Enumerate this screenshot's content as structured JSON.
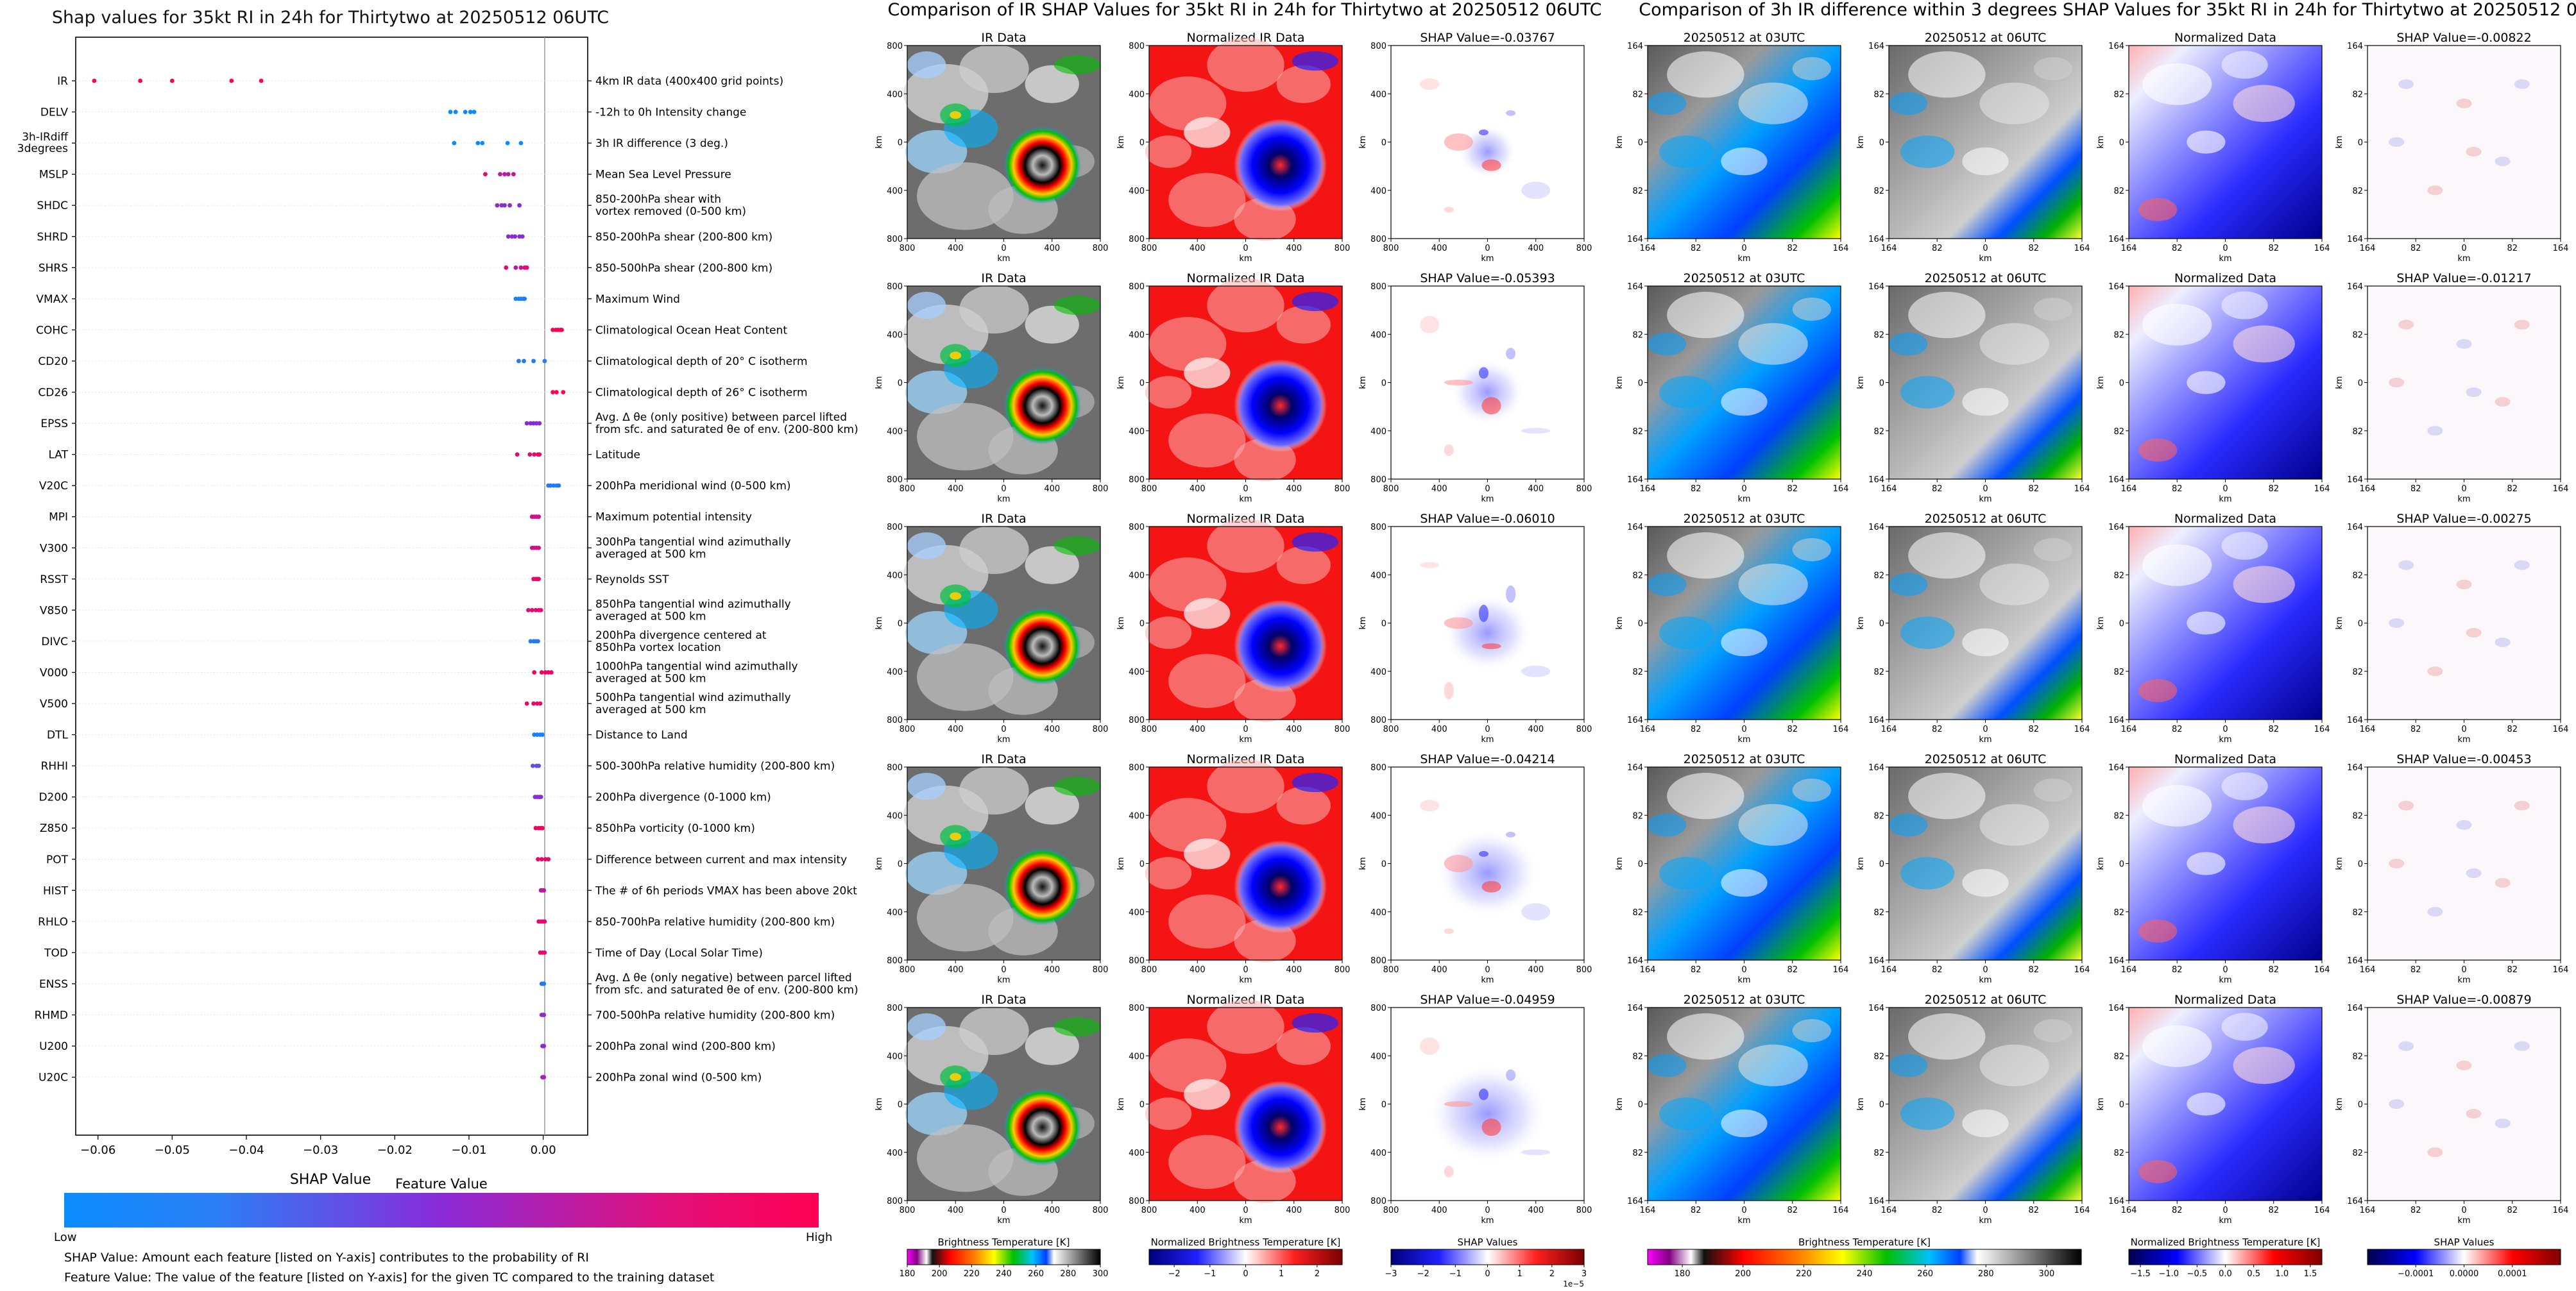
{
  "summary_plot": {
    "title": "Shap values for 35kt RI in 24h for Thirtytwo at 20250512 06UTC",
    "xlabel": "SHAP Value",
    "x_ticks": [
      "−0.06",
      "−0.05",
      "−0.04",
      "−0.03",
      "−0.02",
      "−0.01",
      "0.00"
    ],
    "colorbar_title": "Feature Value",
    "colorbar_low": "Low",
    "colorbar_high": "High",
    "footnote1": "SHAP Value: Amount each feature [listed on Y-axis] contributes to the probability of RI",
    "footnote2": "Feature Value: The value of the feature [listed on Y-axis] for the given TC compared to the training dataset",
    "low_color": "#1e88e5",
    "high_color": "#ff0052"
  },
  "ir_section": {
    "title": "Comparison of IR SHAP Values for 35kt RI in 24h for Thirtytwo at 20250512 06UTC",
    "col1_title": "IR Data",
    "col2_title": "Normalized IR Data",
    "shap_values": [
      "SHAP Value=-0.03767",
      "SHAP Value=-0.05393",
      "SHAP Value=-0.06010",
      "SHAP Value=-0.04214",
      "SHAP Value=-0.04959"
    ],
    "axis_unit": "km",
    "ticks": [
      "800",
      "400",
      "0",
      "400",
      "800"
    ],
    "x_ticks": [
      "800",
      "400",
      "0",
      "400",
      "800"
    ],
    "cbar1_label": "Brightness Temperature [K]",
    "cbar1_ticks": [
      "180",
      "200",
      "220",
      "240",
      "260",
      "280",
      "300"
    ],
    "cbar2_label": "Normalized Brightness Temperature [K]",
    "cbar2_ticks": [
      "−2",
      "−1",
      "0",
      "1",
      "2"
    ],
    "cbar3_label": "SHAP Values",
    "cbar3_ticks": [
      "−3",
      "−2",
      "−1",
      "0",
      "1",
      "2",
      "3"
    ],
    "cbar3_exp": "1e−5"
  },
  "diff_section": {
    "title": "Comparison of 3h IR difference within 3 degrees SHAP Values for 35kt RI in 24h for Thirtytwo at 20250512 06UTC",
    "col1_title": "20250512 at 03UTC",
    "col2_title": "20250512 at 06UTC",
    "col3_title": "Normalized Data",
    "shap_values": [
      "SHAP Value=-0.00822",
      "SHAP Value=-0.01217",
      "SHAP Value=-0.00275",
      "SHAP Value=-0.00453",
      "SHAP Value=-0.00879"
    ],
    "axis_unit": "km",
    "ticks": [
      "164",
      "82",
      "0",
      "82",
      "164"
    ],
    "x_ticks": [
      "164",
      "82",
      "0",
      "82",
      "164"
    ],
    "cbar1_label": "Brightness Temperature [K]",
    "cbar1_ticks": [
      "180",
      "200",
      "220",
      "240",
      "260",
      "280",
      "300"
    ],
    "cbar2_label": "Normalized Brightness Temperature [K]",
    "cbar2_ticks": [
      "−1.5",
      "−1.0",
      "−0.5",
      "0.0",
      "0.5",
      "1.0",
      "1.5"
    ],
    "cbar3_label": "SHAP Values",
    "cbar3_ticks": [
      "−0.0001",
      "0.0000",
      "0.0001"
    ]
  },
  "chart_data": [
    {
      "type": "scatter",
      "title": "Shap values for 35kt RI in 24h for Thirtytwo at 20250512 06UTC",
      "xlabel": "SHAP Value",
      "xlim": [
        -0.063,
        0.006
      ],
      "grid": false,
      "features": [
        {
          "name": "IR",
          "desc": "4km IR data (400x400 grid points)",
          "points": [
            [
              -0.0605,
              1
            ],
            [
              -0.0543,
              1
            ],
            [
              -0.05,
              1
            ],
            [
              -0.042,
              1
            ],
            [
              -0.038,
              1
            ]
          ]
        },
        {
          "name": "DELV",
          "desc": "-12h to 0h Intensity change",
          "points": [
            [
              -0.0125,
              0
            ],
            [
              -0.0118,
              0
            ],
            [
              -0.0105,
              0
            ],
            [
              -0.0098,
              0
            ],
            [
              -0.0093,
              0
            ]
          ]
        },
        {
          "name": "3h-IRdiff 3degrees",
          "desc": "3h IR difference (3 deg.)",
          "points": [
            [
              -0.012,
              0
            ],
            [
              -0.0088,
              0
            ],
            [
              -0.0082,
              0
            ],
            [
              -0.0048,
              0
            ],
            [
              -0.003,
              0
            ]
          ]
        },
        {
          "name": "MSLP",
          "desc": "Mean Sea Level Pressure",
          "points": [
            [
              -0.0078,
              0.9
            ],
            [
              -0.0058,
              0.7
            ],
            [
              -0.0052,
              0.7
            ],
            [
              -0.0047,
              0.7
            ],
            [
              -0.004,
              0.8
            ]
          ]
        },
        {
          "name": "SHDC",
          "desc": "850-200hPa shear with\nvortex removed (0-500 km)",
          "points": [
            [
              -0.0062,
              0.55
            ],
            [
              -0.0056,
              0.5
            ],
            [
              -0.0052,
              0.5
            ],
            [
              -0.0045,
              0.55
            ],
            [
              -0.0032,
              0.5
            ]
          ]
        },
        {
          "name": "SHRD",
          "desc": "850-200hPa shear (200-800 km)",
          "points": [
            [
              -0.0047,
              0.5
            ],
            [
              -0.0042,
              0.5
            ],
            [
              -0.0038,
              0.5
            ],
            [
              -0.0032,
              0.5
            ],
            [
              -0.0028,
              0.5
            ]
          ]
        },
        {
          "name": "SHRS",
          "desc": "850-500hPa shear (200-800 km)",
          "points": [
            [
              -0.005,
              0.9
            ],
            [
              -0.0037,
              0.7
            ],
            [
              -0.003,
              0.8
            ],
            [
              -0.0025,
              0.8
            ],
            [
              -0.0022,
              0.9
            ]
          ]
        },
        {
          "name": "VMAX",
          "desc": "Maximum Wind",
          "points": [
            [
              -0.0037,
              0.05
            ],
            [
              -0.0033,
              0.05
            ],
            [
              -0.003,
              0.05
            ],
            [
              -0.0027,
              0.05
            ],
            [
              -0.0025,
              0.05
            ]
          ]
        },
        {
          "name": "COHC",
          "desc": "Climatological Ocean Heat Content",
          "points": [
            [
              0.0013,
              1
            ],
            [
              0.0017,
              1
            ],
            [
              0.002,
              1
            ],
            [
              0.0023,
              1
            ],
            [
              0.0025,
              1
            ]
          ]
        },
        {
          "name": "CD20",
          "desc": "Climatological depth of 20° C isotherm",
          "points": [
            [
              -0.0033,
              0.1
            ],
            [
              -0.0026,
              0.1
            ],
            [
              -0.0013,
              0.1
            ],
            [
              0.0002,
              0.1
            ]
          ]
        },
        {
          "name": "CD26",
          "desc": "Climatological depth of 26° C isotherm",
          "points": [
            [
              0.0013,
              1
            ],
            [
              0.0018,
              1
            ],
            [
              0.0027,
              1
            ]
          ]
        },
        {
          "name": "EPSS",
          "desc": "Avg. Δ θe (only positive) between parcel lifted\nfrom sfc. and saturated θe of env. (200-800 km)",
          "points": [
            [
              -0.0022,
              0.5
            ],
            [
              -0.0017,
              0.5
            ],
            [
              -0.0013,
              0.5
            ],
            [
              -0.0009,
              0.5
            ],
            [
              -0.0005,
              0.5
            ]
          ]
        },
        {
          "name": "LAT",
          "desc": "Latitude",
          "points": [
            [
              -0.0035,
              0.9
            ],
            [
              -0.0018,
              0.9
            ],
            [
              -0.0012,
              0.9
            ],
            [
              -0.0007,
              0.9
            ],
            [
              -0.0005,
              0.9
            ]
          ]
        },
        {
          "name": "V20C",
          "desc": "200hPa meridional wind (0-500 km)",
          "points": [
            [
              0.0007,
              0.1
            ],
            [
              0.001,
              0.1
            ],
            [
              0.0014,
              0.1
            ],
            [
              0.0018,
              0.1
            ],
            [
              0.0021,
              0.1
            ]
          ]
        },
        {
          "name": "MPI",
          "desc": "Maximum potential intensity",
          "points": [
            [
              -0.0015,
              0.8
            ],
            [
              -0.0012,
              0.8
            ],
            [
              -0.0009,
              0.8
            ],
            [
              -0.0006,
              0.8
            ]
          ]
        },
        {
          "name": "V300",
          "desc": "300hPa tangential wind azimuthally\naveraged at 500 km",
          "points": [
            [
              -0.0015,
              0.8
            ],
            [
              -0.0012,
              0.8
            ],
            [
              -0.0009,
              0.8
            ],
            [
              -0.0006,
              0.8
            ]
          ]
        },
        {
          "name": "RSST",
          "desc": "Reynolds SST",
          "points": [
            [
              -0.0013,
              0.9
            ],
            [
              -0.001,
              0.9
            ],
            [
              -0.0008,
              0.9
            ],
            [
              -0.0006,
              0.9
            ]
          ]
        },
        {
          "name": "V850",
          "desc": "850hPa tangential wind azimuthally\naveraged at 500 km",
          "points": [
            [
              -0.002,
              0.8
            ],
            [
              -0.0015,
              0.9
            ],
            [
              -0.001,
              0.9
            ],
            [
              -0.0006,
              0.8
            ],
            [
              -0.0003,
              0.9
            ]
          ]
        },
        {
          "name": "DIVC",
          "desc": "200hPa divergence centered at\n850hPa vortex location",
          "points": [
            [
              -0.0017,
              0.1
            ],
            [
              -0.0013,
              0.1
            ],
            [
              -0.001,
              0.1
            ],
            [
              -0.0007,
              0.1
            ]
          ]
        },
        {
          "name": "V000",
          "desc": "1000hPa tangential wind azimuthally\naveraged at 500 km",
          "points": [
            [
              -0.0012,
              0.95
            ],
            [
              -0.0002,
              0.95
            ],
            [
              0.0003,
              0.95
            ],
            [
              0.0007,
              0.95
            ],
            [
              0.0011,
              0.95
            ]
          ]
        },
        {
          "name": "V500",
          "desc": "500hPa tangential wind azimuthally\naveraged at 500 km",
          "points": [
            [
              -0.0022,
              0.9
            ],
            [
              -0.0013,
              0.9
            ],
            [
              -0.0008,
              0.9
            ],
            [
              -0.0004,
              0.9
            ]
          ]
        },
        {
          "name": "DTL",
          "desc": "Distance to Land",
          "points": [
            [
              -0.0012,
              0.05
            ],
            [
              -0.0008,
              0.05
            ],
            [
              -0.0004,
              0.05
            ],
            [
              -0.0001,
              0.05
            ]
          ]
        },
        {
          "name": "RHHI",
          "desc": "500-300hPa relative humidity (200-800 km)",
          "points": [
            [
              -0.0014,
              0.3
            ],
            [
              -0.0009,
              0.35
            ],
            [
              -0.0006,
              0.3
            ]
          ]
        },
        {
          "name": "D200",
          "desc": "200hPa divergence (0-1000 km)",
          "points": [
            [
              -0.0011,
              0.5
            ],
            [
              -0.0008,
              0.5
            ],
            [
              -0.0005,
              0.5
            ],
            [
              -0.0003,
              0.5
            ]
          ]
        },
        {
          "name": "Z850",
          "desc": "850hPa vorticity (0-1000 km)",
          "points": [
            [
              -0.001,
              0.95
            ],
            [
              -0.0006,
              0.95
            ],
            [
              -0.0003,
              0.95
            ],
            [
              -0.0001,
              0.95
            ]
          ]
        },
        {
          "name": "POT",
          "desc": "Difference between current and max intensity",
          "points": [
            [
              -0.0007,
              0.9
            ],
            [
              -0.0002,
              0.9
            ],
            [
              0.0003,
              0.9
            ],
            [
              0.0007,
              0.9
            ]
          ]
        },
        {
          "name": "HIST",
          "desc": "The # of 6h periods VMAX has been above 20kt",
          "points": [
            [
              -0.0003,
              0.7
            ],
            [
              -0.0001,
              0.7
            ],
            [
              0.0001,
              0.7
            ]
          ]
        },
        {
          "name": "RHLO",
          "desc": "850-700hPa relative humidity (200-800 km)",
          "points": [
            [
              -0.0006,
              0.9
            ],
            [
              -0.0003,
              0.9
            ],
            [
              0.0,
              0.9
            ],
            [
              0.0002,
              0.9
            ]
          ]
        },
        {
          "name": "TOD",
          "desc": "Time of Day (Local Solar Time)",
          "points": [
            [
              -0.0004,
              0.9
            ],
            [
              -0.0001,
              0.9
            ],
            [
              0.0002,
              0.9
            ]
          ]
        },
        {
          "name": "ENSS",
          "desc": "Avg. Δ θe (only negative) between parcel lifted\nfrom sfc. and saturated θe of env. (200-800 km)",
          "points": [
            [
              -0.0002,
              0.1
            ],
            [
              0.0,
              0.1
            ],
            [
              0.0001,
              0.1
            ]
          ]
        },
        {
          "name": "RHMD",
          "desc": "700-500hPa relative humidity (200-800 km)",
          "points": [
            [
              -0.0002,
              0.5
            ],
            [
              0.0,
              0.5
            ],
            [
              0.0001,
              0.5
            ]
          ]
        },
        {
          "name": "U200",
          "desc": "200hPa zonal wind (200-800 km)",
          "points": [
            [
              -0.0001,
              0.5
            ],
            [
              0.0,
              0.5
            ],
            [
              0.0001,
              0.5
            ]
          ]
        },
        {
          "name": "U20C",
          "desc": "200hPa zonal wind (0-500 km)",
          "points": [
            [
              -0.0001,
              0.6
            ],
            [
              0.0,
              0.6
            ],
            [
              0.0001,
              0.6
            ]
          ]
        }
      ]
    },
    {
      "type": "heatmap",
      "title": "Comparison of IR SHAP Values for 35kt RI in 24h for Thirtytwo at 20250512 06UTC",
      "panels_per_row": [
        "IR Data",
        "Normalized IR Data",
        "SHAP Value"
      ],
      "rows": 5,
      "shap_values": [
        -0.03767,
        -0.05393,
        -0.0601,
        -0.04214,
        -0.04959
      ],
      "x_range_km": [
        -800,
        800
      ],
      "y_range_km": [
        -800,
        800
      ]
    },
    {
      "type": "heatmap",
      "title": "Comparison of 3h IR difference within 3 degrees SHAP Values for 35kt RI in 24h for Thirtytwo at 20250512 06UTC",
      "panels_per_row": [
        "20250512 at 03UTC",
        "20250512 at 06UTC",
        "Normalized Data",
        "SHAP Value"
      ],
      "rows": 5,
      "shap_values": [
        -0.00822,
        -0.01217,
        -0.00275,
        -0.00453,
        -0.00879
      ],
      "x_range_km": [
        -164,
        164
      ],
      "y_range_km": [
        -164,
        164
      ]
    }
  ]
}
